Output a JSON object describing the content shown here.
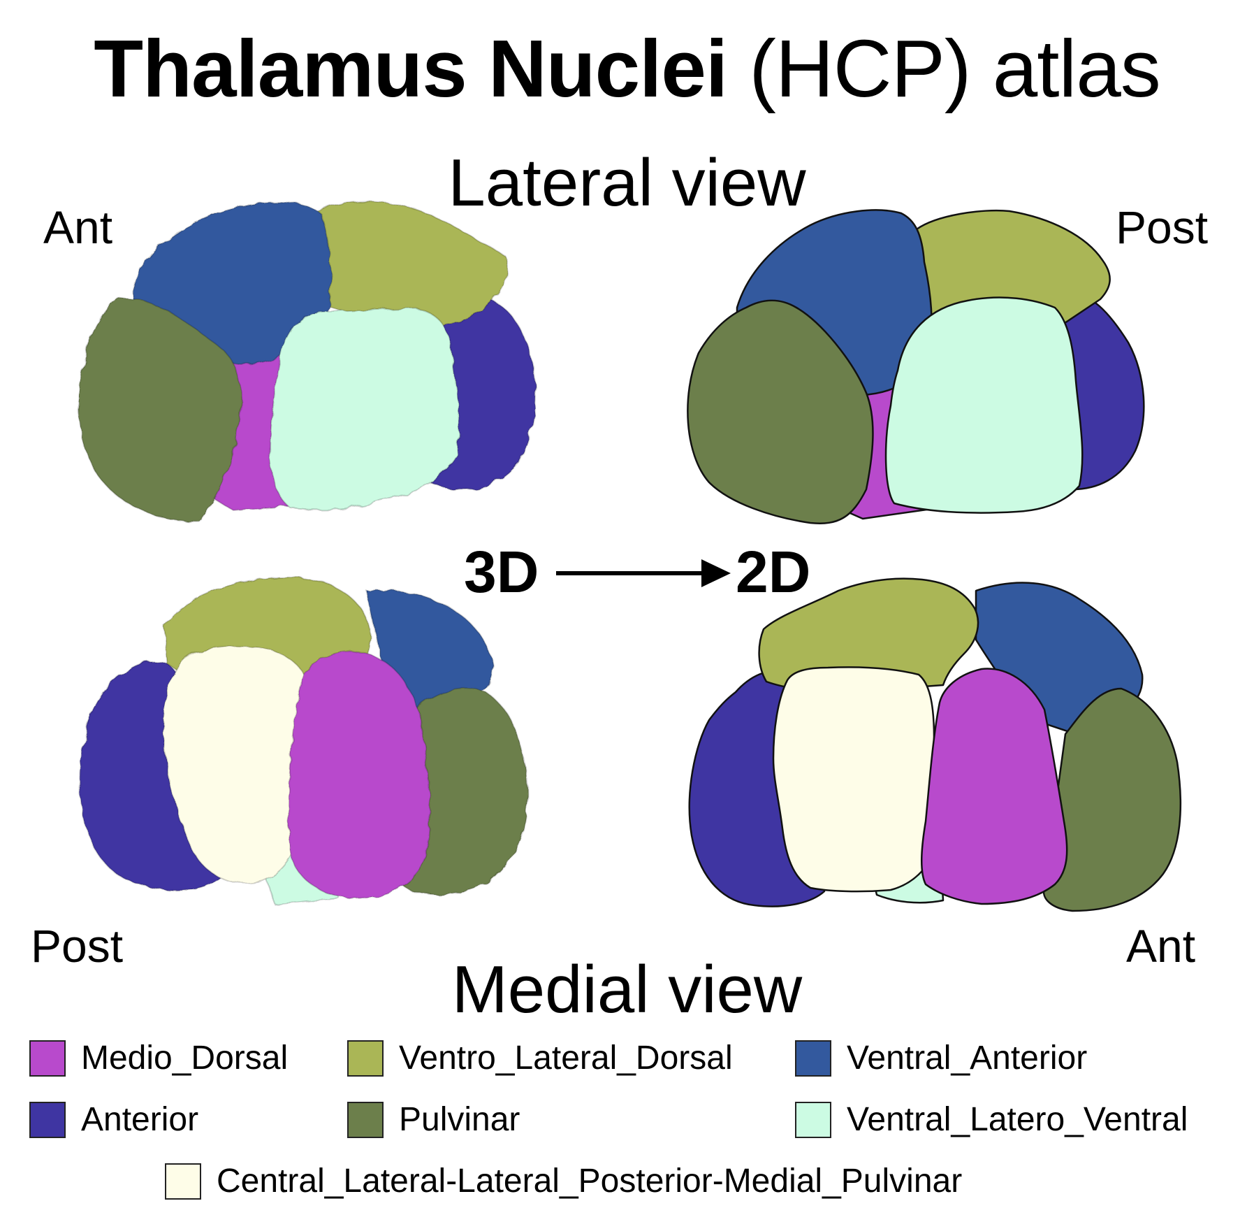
{
  "title": {
    "bold": "Thalamus Nuclei",
    "rest": " (HCP) atlas"
  },
  "views": {
    "lateral": "Lateral view",
    "medial": "Medial view"
  },
  "orientation": {
    "ant_top": "Ant",
    "post_top": "Post",
    "post_bottom": "Post",
    "ant_bottom": "Ant"
  },
  "conversion": {
    "from": "3D",
    "to": "2D"
  },
  "colors": {
    "medio_dorsal": "#b84acc",
    "ventro_lateral_dorsal": "#aab656",
    "ventral_anterior": "#33599e",
    "anterior": "#3f35a2",
    "pulvinar": "#6c7f4b",
    "ventral_latero_ventral": "#ccfbe3",
    "central_lateral": "#fefde8"
  },
  "legend": [
    {
      "label": "Medio_Dorsal",
      "color": "#b84acc"
    },
    {
      "label": "Ventro_Lateral_Dorsal",
      "color": "#aab656"
    },
    {
      "label": "Ventral_Anterior",
      "color": "#33599e"
    },
    {
      "label": "Anterior",
      "color": "#3f35a2"
    },
    {
      "label": "Pulvinar",
      "color": "#6c7f4b"
    },
    {
      "label": "Ventral_Latero_Ventral",
      "color": "#ccfbe3"
    },
    {
      "label": "Central_Lateral-Lateral_Posterior-Medial_Pulvinar",
      "color": "#fefde8"
    }
  ]
}
